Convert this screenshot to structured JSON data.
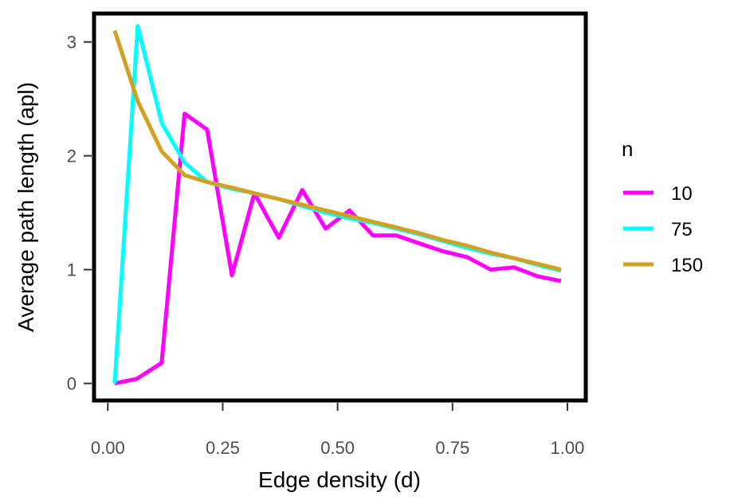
{
  "chart_data": {
    "type": "line",
    "title": "",
    "xlabel": "Edge density (d)",
    "ylabel": "Average path length (apl)",
    "xlim": [
      -0.03,
      1.04
    ],
    "ylim": [
      -0.15,
      3.25
    ],
    "x_ticks": [
      0,
      0.25,
      0.5,
      0.75,
      1
    ],
    "x_tick_labels": [
      "0.00",
      "0.25",
      "0.50",
      "0.75",
      "1.00"
    ],
    "y_ticks": [
      0,
      1,
      2,
      3
    ],
    "y_tick_labels": [
      "0",
      "1",
      "2",
      "3"
    ],
    "grid": false,
    "legend": {
      "title": "n",
      "placement": "right"
    },
    "series": [
      {
        "name": "10",
        "color": "#ff00ff",
        "x": [
          0.015,
          0.063,
          0.117,
          0.167,
          0.216,
          0.27,
          0.319,
          0.372,
          0.423,
          0.474,
          0.526,
          0.577,
          0.628,
          0.678,
          0.73,
          0.782,
          0.833,
          0.884,
          0.936,
          0.986
        ],
        "y": [
          0.0,
          0.04,
          0.18,
          2.37,
          2.23,
          0.95,
          1.67,
          1.28,
          1.7,
          1.36,
          1.52,
          1.3,
          1.3,
          1.23,
          1.16,
          1.11,
          1.0,
          1.02,
          0.94,
          0.9
        ]
      },
      {
        "name": "75",
        "color": "#00ffff",
        "x": [
          0.015,
          0.065,
          0.117,
          0.167,
          0.216,
          0.27,
          0.319,
          0.372,
          0.423,
          0.474,
          0.526,
          0.577,
          0.628,
          0.678,
          0.73,
          0.782,
          0.833,
          0.884,
          0.936,
          0.986
        ],
        "y": [
          0.0,
          3.14,
          2.29,
          1.94,
          1.77,
          1.71,
          1.67,
          1.62,
          1.56,
          1.5,
          1.45,
          1.41,
          1.36,
          1.31,
          1.25,
          1.19,
          1.14,
          1.1,
          1.04,
          0.99
        ]
      },
      {
        "name": "150",
        "color": "#d4a020",
        "x": [
          0.015,
          0.065,
          0.117,
          0.167,
          0.216,
          0.27,
          0.319,
          0.372,
          0.423,
          0.474,
          0.526,
          0.577,
          0.628,
          0.678,
          0.73,
          0.782,
          0.833,
          0.884,
          0.936,
          0.986
        ],
        "y": [
          3.1,
          2.48,
          2.04,
          1.83,
          1.77,
          1.72,
          1.67,
          1.62,
          1.57,
          1.52,
          1.47,
          1.42,
          1.37,
          1.32,
          1.26,
          1.21,
          1.15,
          1.1,
          1.05,
          1.0
        ]
      }
    ]
  }
}
